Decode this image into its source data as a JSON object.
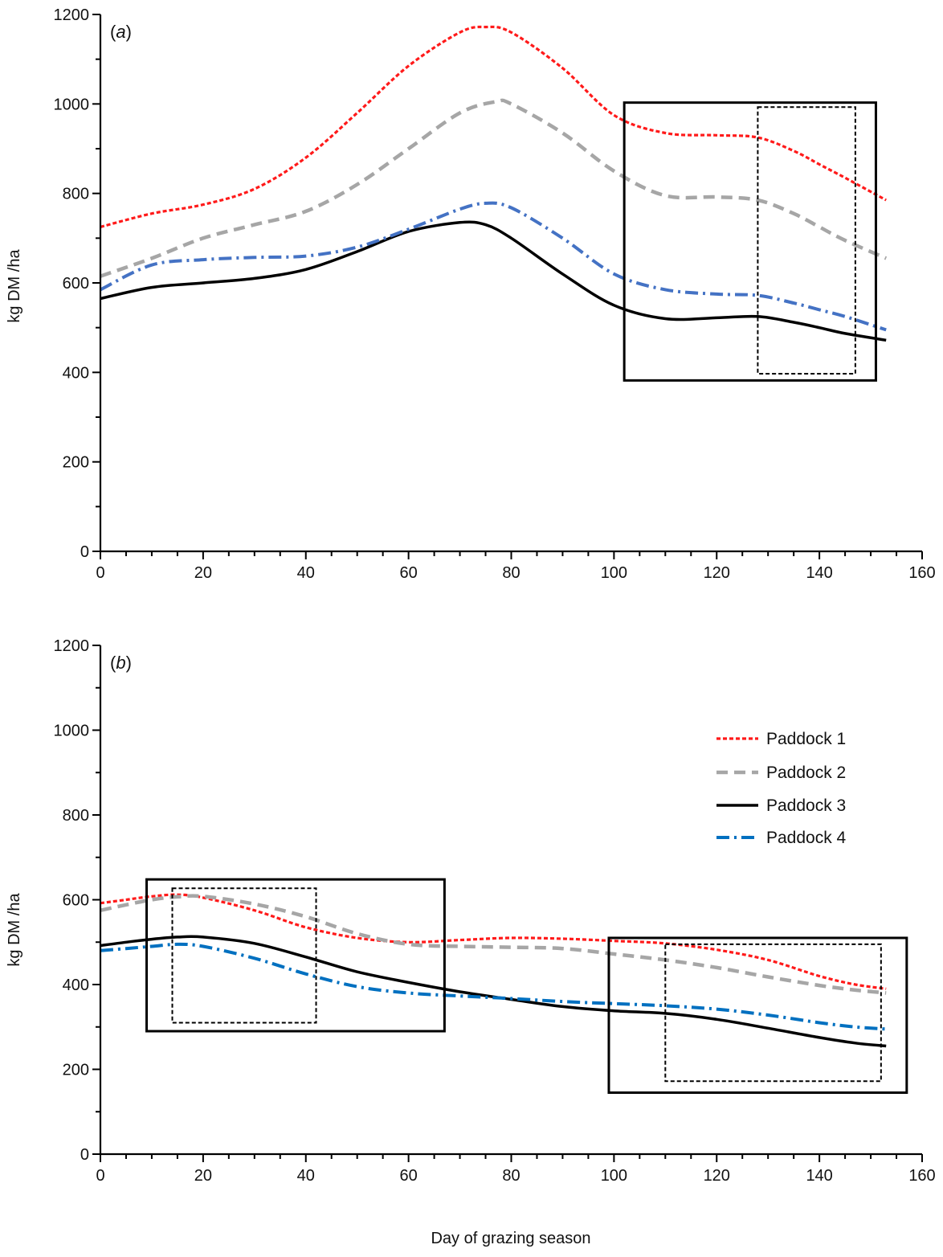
{
  "chart_data": [
    {
      "type": "line",
      "panel_label": "a",
      "title": "",
      "xlabel": "",
      "ylabel": "kg DM /ha",
      "xlim": [
        0,
        160
      ],
      "ylim": [
        0,
        1200
      ],
      "xticks": [
        "0",
        "20",
        "40",
        "60",
        "80",
        "100",
        "120",
        "140",
        "160"
      ],
      "yticks": [
        "0",
        "200",
        "400",
        "600",
        "800",
        "1000",
        "1200"
      ],
      "series": [
        {
          "name": "Paddock 1",
          "color": "#ff1a1a",
          "style": "dotted",
          "x": [
            0,
            10,
            20,
            30,
            40,
            50,
            60,
            70,
            75,
            80,
            90,
            100,
            110,
            120,
            128,
            135,
            140,
            145,
            153
          ],
          "y": [
            725,
            755,
            775,
            810,
            880,
            980,
            1085,
            1160,
            1172,
            1160,
            1080,
            975,
            935,
            930,
            925,
            895,
            865,
            835,
            785
          ]
        },
        {
          "name": "Paddock 2",
          "color": "#a6a6a6",
          "style": "dashed",
          "x": [
            0,
            10,
            20,
            30,
            40,
            50,
            60,
            70,
            77,
            80,
            90,
            100,
            110,
            120,
            128,
            135,
            140,
            145,
            153
          ],
          "y": [
            615,
            655,
            700,
            730,
            760,
            820,
            900,
            980,
            1005,
            1000,
            935,
            850,
            795,
            792,
            785,
            755,
            725,
            695,
            655
          ]
        },
        {
          "name": "Paddock 3",
          "color": "#000000",
          "style": "solid",
          "x": [
            0,
            10,
            20,
            30,
            40,
            50,
            60,
            70,
            75,
            80,
            90,
            100,
            110,
            120,
            128,
            135,
            140,
            145,
            153
          ],
          "y": [
            565,
            590,
            600,
            610,
            630,
            670,
            715,
            735,
            730,
            700,
            620,
            550,
            520,
            522,
            525,
            512,
            500,
            487,
            472
          ]
        },
        {
          "name": "Paddock 4",
          "color": "#4472c4",
          "style": "dashdot",
          "x": [
            0,
            10,
            20,
            30,
            40,
            50,
            60,
            70,
            75,
            80,
            90,
            100,
            110,
            120,
            128,
            135,
            140,
            145,
            153
          ],
          "y": [
            585,
            640,
            652,
            657,
            660,
            680,
            720,
            765,
            778,
            768,
            700,
            620,
            585,
            575,
            572,
            555,
            540,
            525,
            495
          ]
        }
      ],
      "annotation_boxes": [
        {
          "style": "solid",
          "x0": 102,
          "x1": 151,
          "y0": 382,
          "y1": 1003
        },
        {
          "style": "dashed",
          "x0": 128,
          "x1": 147,
          "y0": 397,
          "y1": 993
        }
      ]
    },
    {
      "type": "line",
      "panel_label": "b",
      "title": "",
      "xlabel": "Day of grazing season",
      "ylabel": "kg DM /ha",
      "xlim": [
        0,
        160
      ],
      "ylim": [
        0,
        1200
      ],
      "xticks": [
        "0",
        "20",
        "40",
        "60",
        "80",
        "100",
        "120",
        "140",
        "160"
      ],
      "yticks": [
        "0",
        "200",
        "400",
        "600",
        "800",
        "1000",
        "1200"
      ],
      "legend": {
        "position": "top-right",
        "entries": [
          "Paddock 1",
          "Paddock 2",
          "Paddock 3",
          "Paddock 4"
        ]
      },
      "series": [
        {
          "name": "Paddock 1",
          "color": "#ff1a1a",
          "style": "dotted",
          "x": [
            0,
            5,
            10,
            15,
            20,
            30,
            40,
            50,
            60,
            70,
            80,
            90,
            100,
            110,
            120,
            130,
            140,
            147,
            153
          ],
          "y": [
            592,
            600,
            608,
            612,
            605,
            575,
            535,
            510,
            500,
            505,
            510,
            508,
            503,
            497,
            482,
            458,
            420,
            400,
            390
          ]
        },
        {
          "name": "Paddock 2",
          "color": "#a6a6a6",
          "style": "dashed",
          "x": [
            0,
            5,
            10,
            15,
            20,
            30,
            40,
            50,
            60,
            70,
            80,
            90,
            100,
            110,
            120,
            130,
            140,
            147,
            153
          ],
          "y": [
            575,
            588,
            600,
            607,
            608,
            590,
            560,
            520,
            495,
            490,
            488,
            485,
            472,
            458,
            440,
            418,
            398,
            387,
            380
          ]
        },
        {
          "name": "Paddock 3",
          "color": "#000000",
          "style": "solid",
          "x": [
            0,
            5,
            10,
            15,
            20,
            30,
            40,
            50,
            60,
            70,
            80,
            90,
            100,
            110,
            120,
            130,
            140,
            147,
            153
          ],
          "y": [
            492,
            500,
            507,
            512,
            512,
            497,
            465,
            430,
            405,
            383,
            365,
            348,
            338,
            332,
            318,
            297,
            275,
            262,
            255
          ]
        },
        {
          "name": "Paddock 4",
          "color": "#0070c0",
          "style": "dashdot",
          "x": [
            0,
            5,
            10,
            15,
            20,
            30,
            40,
            50,
            60,
            70,
            80,
            90,
            100,
            110,
            120,
            130,
            140,
            147,
            153
          ],
          "y": [
            480,
            485,
            490,
            495,
            490,
            462,
            425,
            395,
            380,
            373,
            367,
            360,
            355,
            350,
            342,
            328,
            310,
            300,
            295
          ]
        }
      ],
      "annotation_boxes": [
        {
          "style": "solid",
          "x0": 9,
          "x1": 67,
          "y0": 290,
          "y1": 648
        },
        {
          "style": "dashed",
          "x0": 14,
          "x1": 42,
          "y0": 310,
          "y1": 627
        },
        {
          "style": "solid",
          "x0": 99,
          "x1": 157,
          "y0": 145,
          "y1": 510
        },
        {
          "style": "dashed",
          "x0": 110,
          "x1": 152,
          "y0": 172,
          "y1": 495
        }
      ]
    }
  ]
}
